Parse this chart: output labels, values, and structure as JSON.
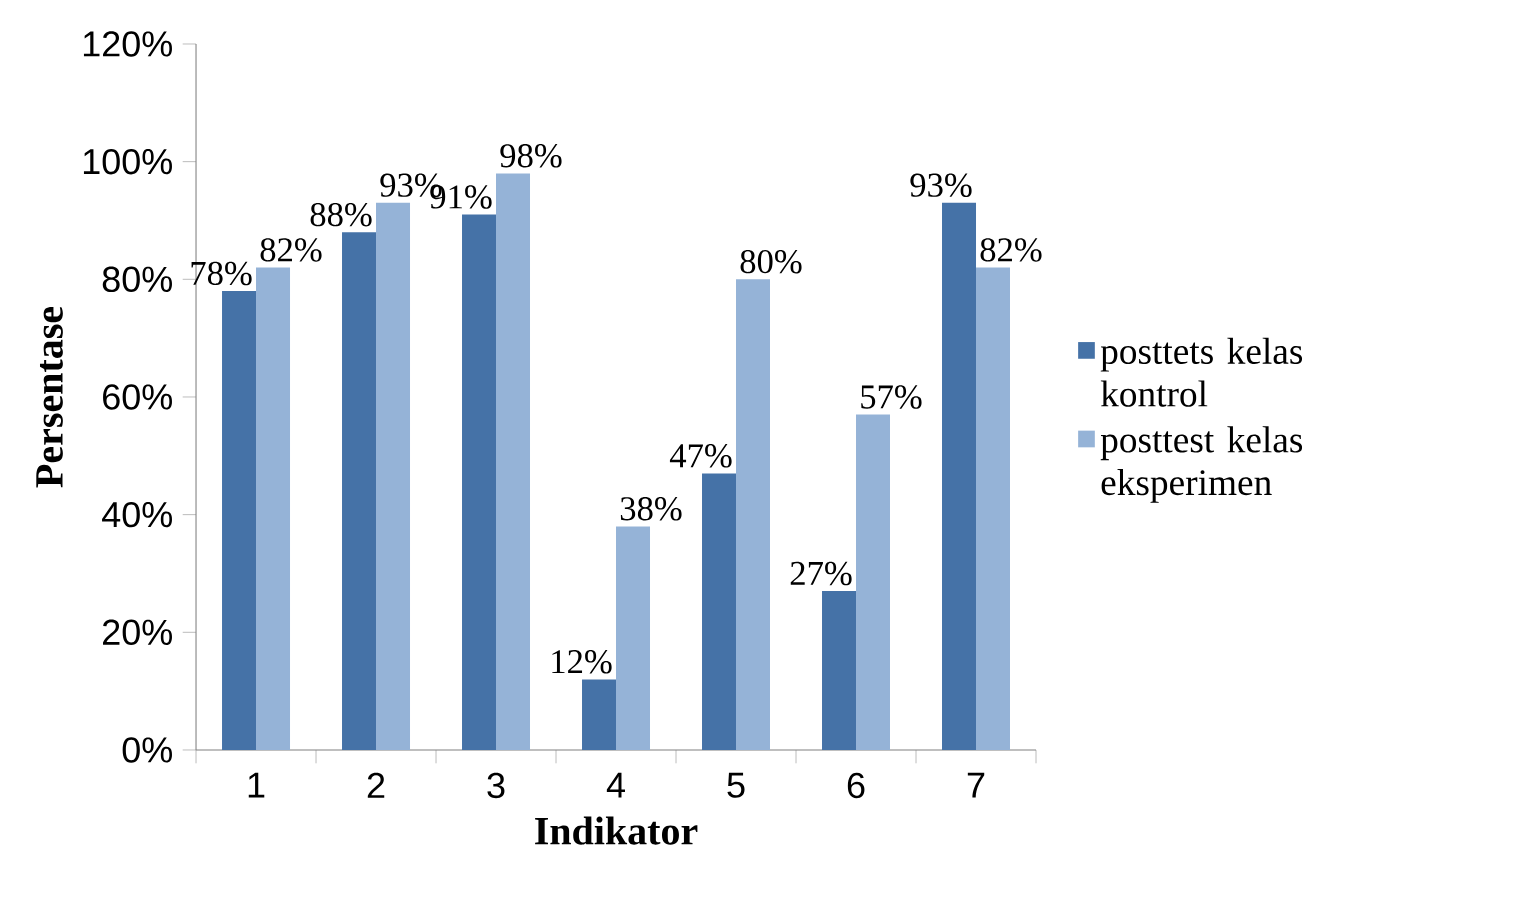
{
  "chart_data": {
    "type": "bar",
    "xlabel": "Indikator",
    "ylabel": "Persentase",
    "categories": [
      "1",
      "2",
      "3",
      "4",
      "5",
      "6",
      "7"
    ],
    "series": [
      {
        "name": "posttets kelas kontrol",
        "color": "#4572a7",
        "values": [
          78,
          88,
          91,
          12,
          47,
          27,
          93
        ],
        "value_labels": [
          "78%",
          "88%",
          "91%",
          "12%",
          "47%",
          "27%",
          "93%"
        ]
      },
      {
        "name": "posttest kelas eksperimen",
        "color": "#95b3d7",
        "values": [
          82,
          93,
          98,
          38,
          80,
          57,
          82
        ],
        "value_labels": [
          "82%",
          "93%",
          "98%",
          "38%",
          "80%",
          "57%",
          "82%"
        ]
      }
    ],
    "ylim": [
      0,
      120
    ],
    "yticks": [
      {
        "value": 0,
        "label": "0%"
      },
      {
        "value": 20,
        "label": "20%"
      },
      {
        "value": 40,
        "label": "40%"
      },
      {
        "value": 60,
        "label": "60%"
      },
      {
        "value": 80,
        "label": "80%"
      },
      {
        "value": 100,
        "label": "100%"
      },
      {
        "value": 120,
        "label": "120%"
      }
    ],
    "grid": false,
    "legend": "right"
  }
}
